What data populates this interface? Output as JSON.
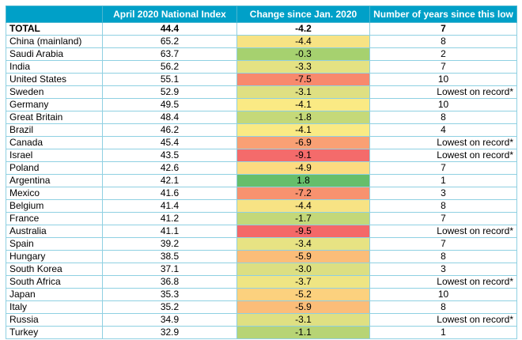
{
  "headers": {
    "country": "",
    "index": "April 2020 National Index",
    "change": "Change since Jan. 2020",
    "years": "Number of years since this low"
  },
  "rows": [
    {
      "country": "TOTAL",
      "index": "44.4",
      "change": "-4.2",
      "years": "7",
      "color": "#ffffff"
    },
    {
      "country": "China (mainland)",
      "index": "65.2",
      "change": "-4.4",
      "years": "8",
      "color": "#f7e384"
    },
    {
      "country": "Saudi Arabia",
      "index": "63.7",
      "change": "-0.3",
      "years": "2",
      "color": "#a6d16f"
    },
    {
      "country": "India",
      "index": "56.2",
      "change": "-3.3",
      "years": "7",
      "color": "#e4e283"
    },
    {
      "country": "United States",
      "index": "55.1",
      "change": "-7.5",
      "years": "10",
      "color": "#f8896d"
    },
    {
      "country": "Sweden",
      "index": "52.9",
      "change": "-3.1",
      "years": "Lowest on record*",
      "color": "#dfe082"
    },
    {
      "country": "Germany",
      "index": "49.5",
      "change": "-4.1",
      "years": "10",
      "color": "#faea84"
    },
    {
      "country": "Great Britain",
      "index": "48.4",
      "change": "-1.8",
      "years": "8",
      "color": "#c5d979"
    },
    {
      "country": "Brazil",
      "index": "46.2",
      "change": "-4.1",
      "years": "4",
      "color": "#faea84"
    },
    {
      "country": "Canada",
      "index": "45.4",
      "change": "-6.9",
      "years": "Lowest on record*",
      "color": "#f9a074"
    },
    {
      "country": "Israel",
      "index": "43.5",
      "change": "-9.1",
      "years": "Lowest on record*",
      "color": "#f46b6b"
    },
    {
      "country": "Poland",
      "index": "42.6",
      "change": "-4.9",
      "years": "7",
      "color": "#fcdb80"
    },
    {
      "country": "Argentina",
      "index": "42.1",
      "change": "1.8",
      "years": "1",
      "color": "#66be6b"
    },
    {
      "country": "Mexico",
      "index": "41.6",
      "change": "-7.2",
      "years": "3",
      "color": "#f8926f"
    },
    {
      "country": "Belgium",
      "index": "41.4",
      "change": "-4.4",
      "years": "8",
      "color": "#f7e384"
    },
    {
      "country": "France",
      "index": "41.2",
      "change": "-1.7",
      "years": "7",
      "color": "#c3d879"
    },
    {
      "country": "Australia",
      "index": "41.1",
      "change": "-9.5",
      "years": "Lowest on record*",
      "color": "#f46868"
    },
    {
      "country": "Spain",
      "index": "39.2",
      "change": "-3.4",
      "years": "7",
      "color": "#e7e383"
    },
    {
      "country": "Hungary",
      "index": "38.5",
      "change": "-5.9",
      "years": "8",
      "color": "#fbbd79"
    },
    {
      "country": "South Korea",
      "index": "37.1",
      "change": "-3.0",
      "years": "3",
      "color": "#dcdf82"
    },
    {
      "country": "South Africa",
      "index": "36.8",
      "change": "-3.7",
      "years": "Lowest on record*",
      "color": "#efe583"
    },
    {
      "country": "Japan",
      "index": "35.3",
      "change": "-5.2",
      "years": "10",
      "color": "#fcd17e"
    },
    {
      "country": "Italy",
      "index": "35.2",
      "change": "-5.9",
      "years": "8",
      "color": "#fbbd79"
    },
    {
      "country": "Russia",
      "index": "34.9",
      "change": "-3.1",
      "years": "Lowest on record*",
      "color": "#dfe082"
    },
    {
      "country": "Turkey",
      "index": "32.9",
      "change": "-1.1",
      "years": "1",
      "color": "#b7d475"
    }
  ]
}
